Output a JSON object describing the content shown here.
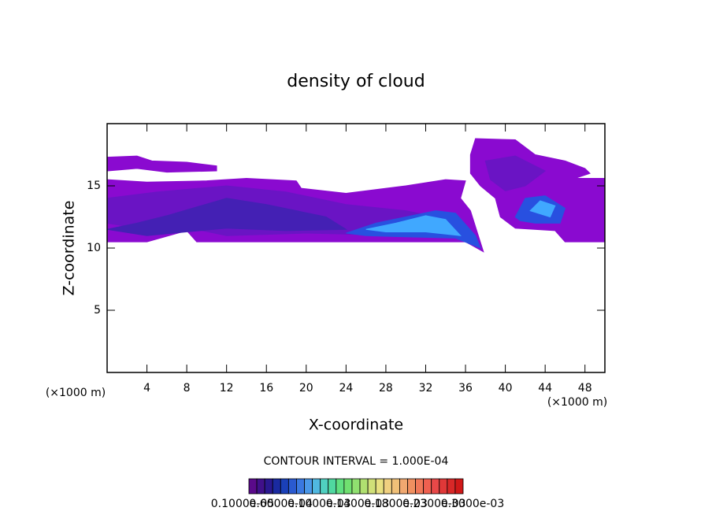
{
  "chart_data": {
    "type": "contour",
    "title": "density of cloud",
    "xlabel": "X-coordinate",
    "ylabel": "Z-coordinate",
    "x_unit_label": "(×1000 m)",
    "y_unit_label": "(×1000 m)",
    "xlim": [
      0,
      50
    ],
    "ylim": [
      0,
      20
    ],
    "xticks": [
      4,
      8,
      12,
      16,
      20,
      24,
      28,
      32,
      36,
      40,
      44,
      48
    ],
    "yticks": [
      5,
      10,
      15
    ],
    "contour_interval_label": "CONTOUR INTERVAL = 1.000E-04",
    "regions": [
      {
        "level": 1e-06,
        "color": "#8a0ad0",
        "points": [
          [
            0,
            17.3
          ],
          [
            3,
            17.4
          ],
          [
            4.5,
            17
          ],
          [
            8,
            16.9
          ],
          [
            11,
            16.6
          ],
          [
            11,
            16.2
          ],
          [
            6,
            16.1
          ],
          [
            3,
            16.4
          ],
          [
            0,
            16.2
          ]
        ]
      },
      {
        "level": 1e-06,
        "color": "#8a0ad0",
        "points": [
          [
            0,
            15.5
          ],
          [
            4,
            15.3
          ],
          [
            10,
            15.4
          ],
          [
            14,
            15.6
          ],
          [
            19,
            15.4
          ],
          [
            19.5,
            14.8
          ],
          [
            24,
            14.4
          ],
          [
            30,
            15
          ],
          [
            34,
            15.5
          ],
          [
            36,
            15.4
          ],
          [
            35.5,
            14
          ],
          [
            36.5,
            13
          ],
          [
            37.8,
            9.7
          ],
          [
            36,
            10.5
          ],
          [
            30,
            10.5
          ],
          [
            20,
            10.5
          ],
          [
            9,
            10.5
          ],
          [
            8,
            11.4
          ],
          [
            4,
            10.5
          ],
          [
            0,
            10.5
          ]
        ]
      },
      {
        "level": 1e-06,
        "color": "#8a0ad0",
        "points": [
          [
            36.5,
            17.5
          ],
          [
            37,
            18.8
          ],
          [
            41,
            18.7
          ],
          [
            43,
            17.5
          ],
          [
            46,
            17
          ],
          [
            48,
            16.4
          ],
          [
            48.5,
            16
          ],
          [
            47,
            15.6
          ],
          [
            50,
            15.6
          ],
          [
            50,
            10.5
          ],
          [
            46,
            10.5
          ],
          [
            45,
            11.4
          ],
          [
            41,
            11.6
          ],
          [
            39.5,
            12.5
          ],
          [
            39,
            14
          ],
          [
            37.5,
            15
          ],
          [
            36.5,
            16
          ]
        ]
      },
      {
        "level": 3e-05,
        "color": "#6a14c4",
        "points": [
          [
            0,
            14
          ],
          [
            5,
            14.5
          ],
          [
            12,
            15
          ],
          [
            18,
            14.5
          ],
          [
            24,
            13.5
          ],
          [
            30,
            13
          ],
          [
            33,
            12.5
          ],
          [
            35,
            11
          ],
          [
            30,
            11
          ],
          [
            20,
            11.2
          ],
          [
            12,
            11
          ],
          [
            9,
            11.5
          ],
          [
            4,
            11.5
          ],
          [
            0,
            12
          ]
        ]
      },
      {
        "level": 3e-05,
        "color": "#6a14c4",
        "points": [
          [
            38,
            17
          ],
          [
            41,
            17.4
          ],
          [
            44,
            16.2
          ],
          [
            42,
            15
          ],
          [
            40,
            14.6
          ],
          [
            38.5,
            15.5
          ]
        ]
      },
      {
        "level": 6e-05,
        "color": "#4420b4",
        "points": [
          [
            0,
            11.5
          ],
          [
            3,
            12
          ],
          [
            6,
            12.6
          ],
          [
            12,
            14
          ],
          [
            16,
            13.5
          ],
          [
            22,
            12.5
          ],
          [
            24,
            11.5
          ],
          [
            18,
            11.4
          ],
          [
            12,
            11.6
          ],
          [
            4,
            11
          ]
        ]
      },
      {
        "level": 6e-05,
        "color": "#2850e0",
        "points": [
          [
            24,
            11.2
          ],
          [
            27,
            12
          ],
          [
            30,
            12.5
          ],
          [
            33,
            13
          ],
          [
            35,
            12.8
          ],
          [
            37,
            11
          ],
          [
            37.5,
            10
          ],
          [
            35,
            10.8
          ],
          [
            30,
            10.9
          ],
          [
            26,
            11
          ]
        ]
      },
      {
        "level": 6e-05,
        "color": "#2850e0",
        "points": [
          [
            41,
            12.5
          ],
          [
            42,
            14
          ],
          [
            44,
            14.2
          ],
          [
            46,
            13.2
          ],
          [
            45.5,
            12
          ],
          [
            43,
            12
          ],
          [
            41.5,
            12.2
          ]
        ]
      },
      {
        "level": 0.0001,
        "color": "#40a8ff",
        "points": [
          [
            26,
            11.5
          ],
          [
            29,
            12
          ],
          [
            32,
            12.6
          ],
          [
            34,
            12.3
          ],
          [
            35.5,
            11
          ],
          [
            32,
            11.3
          ],
          [
            28,
            11.3
          ]
        ]
      },
      {
        "level": 0.0001,
        "color": "#40a8ff",
        "points": [
          [
            42.5,
            13
          ],
          [
            43.5,
            13.8
          ],
          [
            45,
            13.4
          ],
          [
            44.5,
            12.5
          ]
        ]
      }
    ],
    "colorbar_colors": [
      "#5a0a8a",
      "#40108a",
      "#2a1890",
      "#1a2aa0",
      "#1a40b8",
      "#2a5ad0",
      "#3a78e0",
      "#4a98e8",
      "#50b8e0",
      "#50d0c0",
      "#50d8a0",
      "#60e080",
      "#70e070",
      "#90e070",
      "#b0e070",
      "#d0e078",
      "#e8e080",
      "#f0d080",
      "#f0c078",
      "#f0a870",
      "#f09060",
      "#f07858",
      "#f06050",
      "#e84848",
      "#e03838",
      "#d82828",
      "#d01818"
    ],
    "colorbar_ticks": [
      {
        "value": 1e-06,
        "label": "0.1000e-05"
      },
      {
        "value": 6e-05,
        "label": "0.6000e-04"
      },
      {
        "value": 0.0001,
        "label": "0.1000e-03"
      },
      {
        "value": 0.00014,
        "label": "0.1400e-03"
      },
      {
        "value": 0.00018,
        "label": "0.1800e-03"
      },
      {
        "value": 0.00023,
        "label": "0.2300e-03"
      },
      {
        "value": 0.0003,
        "label": "0.3000e-03"
      }
    ]
  }
}
